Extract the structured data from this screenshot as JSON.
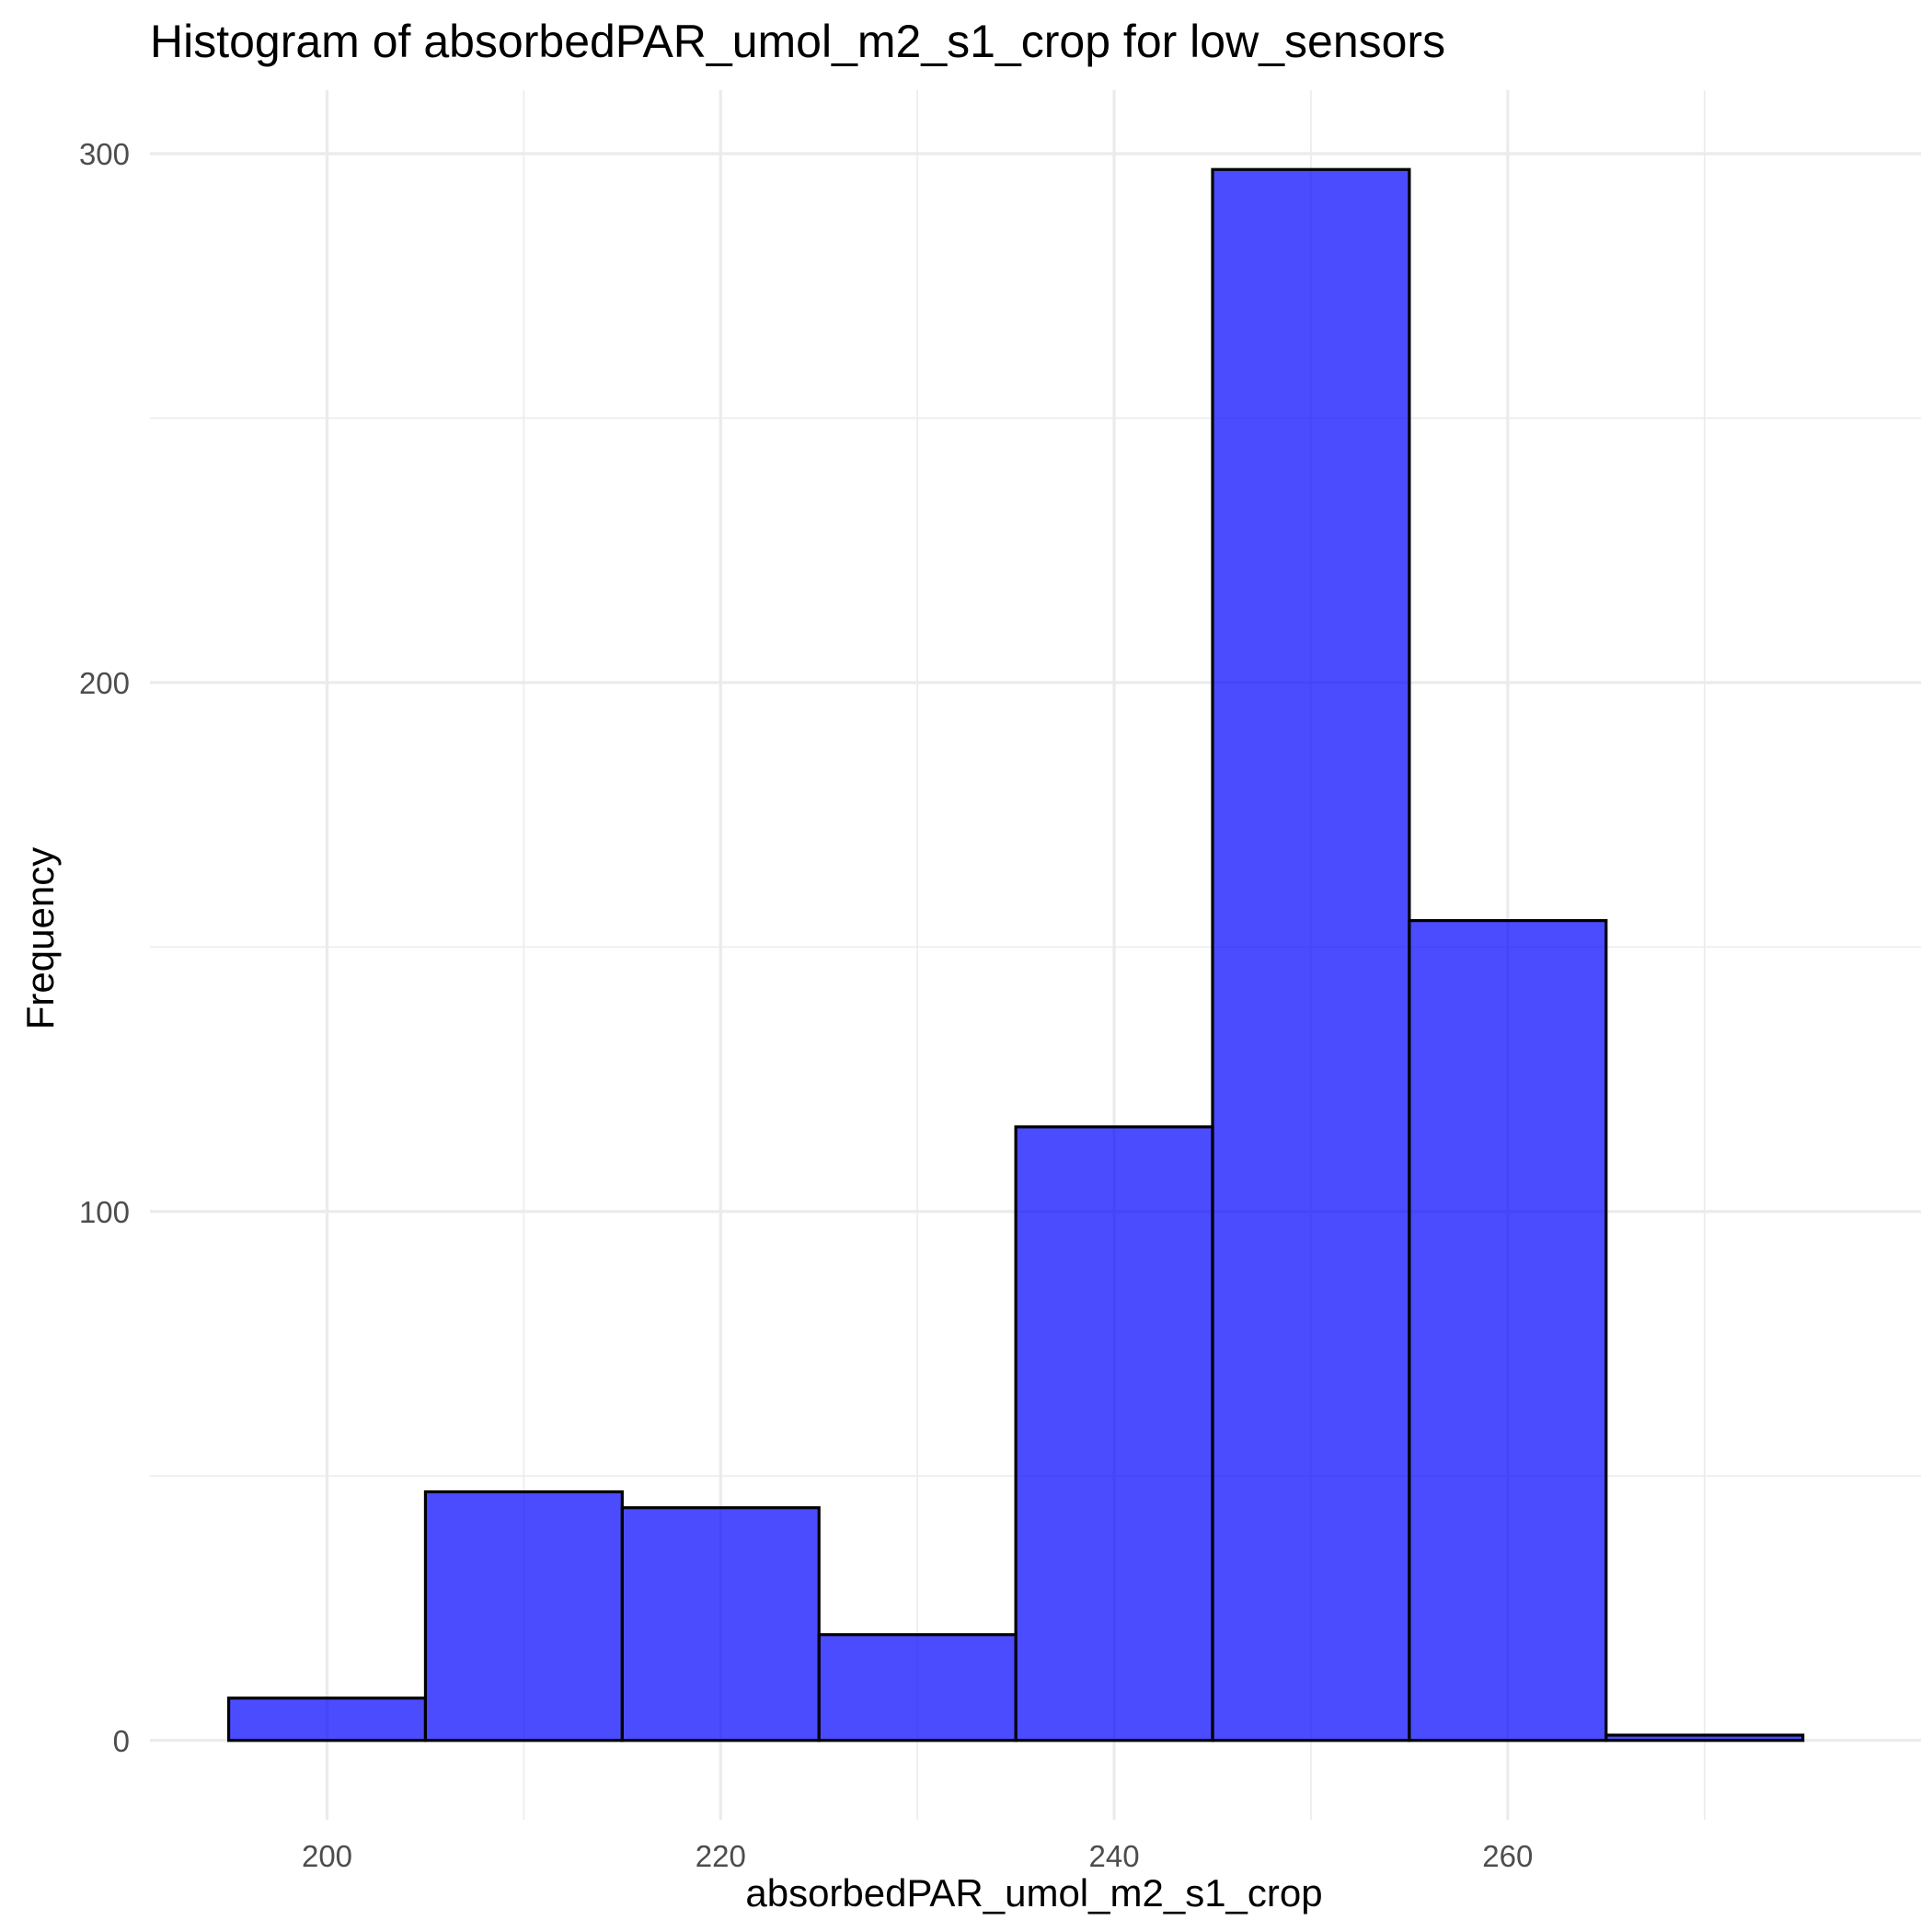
{
  "chart_data": {
    "type": "bar",
    "title": "Histogram of absorbedPAR_umol_m2_s1_crop for low_sensors",
    "xlabel": "absorbedPAR_umol_m2_s1_crop",
    "ylabel": "Frequency",
    "xlim": [
      191,
      281
    ],
    "ylim": [
      -15,
      312
    ],
    "x_ticks": [
      200,
      220,
      240,
      260
    ],
    "x_minor_ticks": [
      210,
      230,
      250,
      270
    ],
    "y_ticks": [
      0,
      100,
      200,
      300
    ],
    "y_minor_ticks": [
      50,
      150,
      250
    ],
    "grid": true,
    "legend": "none",
    "bar_fill": "#0000ff",
    "bar_fill_opacity": 0.7,
    "bar_outline": "#000000",
    "bins": [
      {
        "x0": 195,
        "x1": 205,
        "count": 8
      },
      {
        "x0": 205,
        "x1": 215,
        "count": 47
      },
      {
        "x0": 215,
        "x1": 225,
        "count": 44
      },
      {
        "x0": 225,
        "x1": 235,
        "count": 20
      },
      {
        "x0": 235,
        "x1": 245,
        "count": 116
      },
      {
        "x0": 245,
        "x1": 255,
        "count": 297
      },
      {
        "x0": 255,
        "x1": 265,
        "count": 155
      },
      {
        "x0": 265,
        "x1": 275,
        "count": 1
      }
    ]
  }
}
